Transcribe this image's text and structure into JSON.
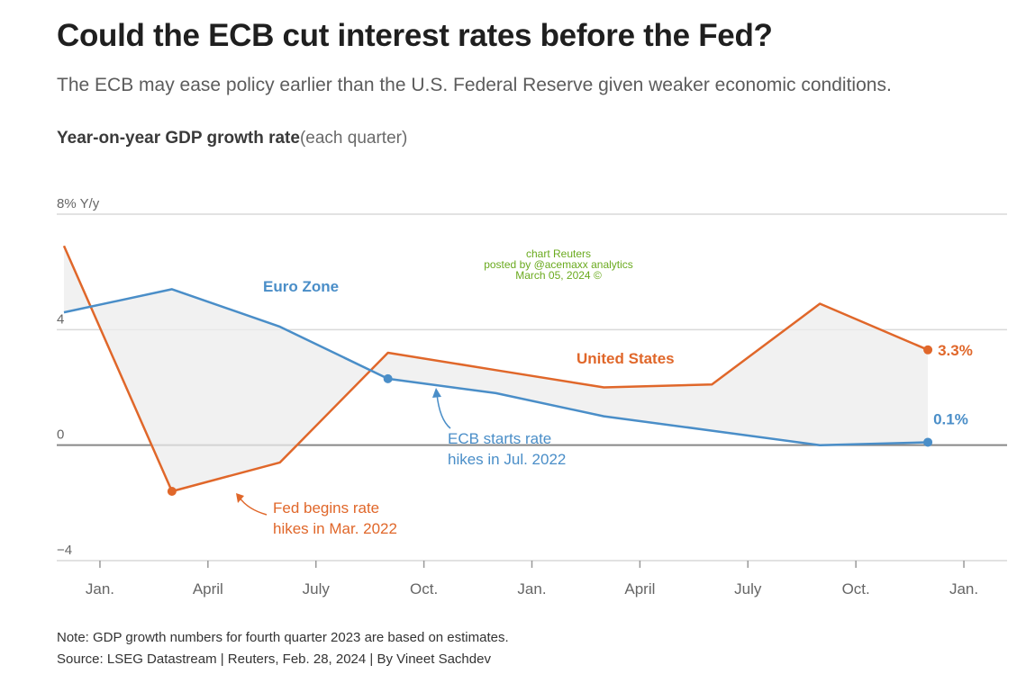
{
  "title": "Could the ECB cut interest rates before the Fed?",
  "subtitle": "The ECB may ease policy earlier than the U.S. Federal Reserve given weaker economic conditions.",
  "chart_heading": {
    "bold": "Year-on-year GDP growth rate",
    "light": "(each quarter)"
  },
  "watermark": [
    "chart Reuters",
    "posted by @acemaxx analytics",
    "March 05, 2024 ©"
  ],
  "footer": {
    "note": "Note: GDP growth numbers for fourth quarter 2023 are based on estimates.",
    "source": "Source: LSEG Datastream | Reuters, Feb. 28, 2024 | By Vineet Sachdev"
  },
  "colors": {
    "us": "#e0672a",
    "euro": "#4a8ec8",
    "grid": "#d9d9d9",
    "zero": "#888888",
    "fill": "#ececec"
  },
  "chart_data": {
    "type": "line",
    "ylim": [
      -4,
      8
    ],
    "y_ticks": [
      {
        "value": 8,
        "label": "8% Y/y"
      },
      {
        "value": 4,
        "label": "4"
      },
      {
        "value": 0,
        "label": "0"
      },
      {
        "value": -4,
        "label": "−4"
      }
    ],
    "x_ticks": [
      {
        "month": 0,
        "label": "Jan."
      },
      {
        "month": 3,
        "label": "April"
      },
      {
        "month": 6,
        "label": "July"
      },
      {
        "month": 9,
        "label": "Oct."
      },
      {
        "month": 12,
        "label": "Jan."
      },
      {
        "month": 15,
        "label": "April"
      },
      {
        "month": 18,
        "label": "July"
      },
      {
        "month": 21,
        "label": "Oct."
      },
      {
        "month": 24,
        "label": "Jan."
      }
    ],
    "x_range": [
      -1.2,
      25.2
    ],
    "series": [
      {
        "name": "United States",
        "key": "us",
        "x": [
          -1,
          2,
          5,
          8,
          11,
          14,
          17,
          20,
          23
        ],
        "values": [
          6.9,
          -1.6,
          -0.6,
          3.2,
          2.6,
          2.0,
          2.1,
          4.9,
          3.3
        ],
        "end_label": "3.3%"
      },
      {
        "name": "Euro Zone",
        "key": "euro",
        "x": [
          -1,
          2,
          5,
          8,
          11,
          14,
          17,
          20,
          23
        ],
        "values": [
          4.6,
          5.4,
          4.1,
          2.3,
          1.8,
          1.0,
          0.5,
          0.0,
          0.1
        ],
        "end_label": "0.1%"
      }
    ],
    "annotations": [
      {
        "series": "us",
        "point_index": 1,
        "lines": [
          "Fed begins rate",
          "hikes in Mar. 2022"
        ]
      },
      {
        "series": "euro",
        "point_index": 3,
        "lines": [
          "ECB starts rate",
          "hikes in Jul. 2022"
        ]
      }
    ]
  }
}
